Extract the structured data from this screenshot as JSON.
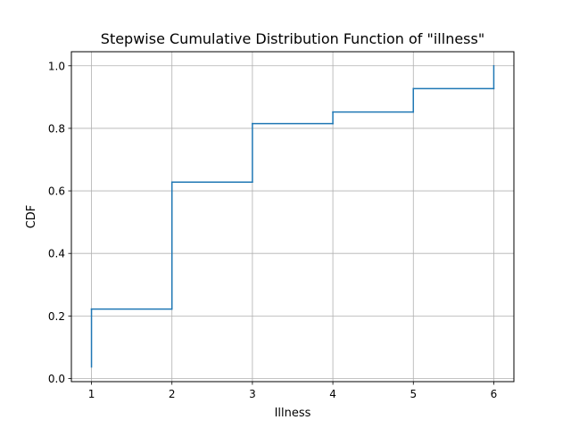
{
  "chart_data": {
    "type": "line",
    "step": "post",
    "title": "Stepwise Cumulative Distribution Function of \"illness\"",
    "xlabel": "Illness",
    "ylabel": "CDF",
    "xlim": [
      0.75,
      6.25
    ],
    "ylim": [
      -0.01,
      1.045
    ],
    "xticks": [
      1,
      2,
      3,
      4,
      5,
      6
    ],
    "xtick_labels": [
      "1",
      "2",
      "3",
      "4",
      "5",
      "6"
    ],
    "yticks": [
      0.0,
      0.2,
      0.4,
      0.6,
      0.8,
      1.0
    ],
    "ytick_labels": [
      "0.0",
      "0.2",
      "0.4",
      "0.6",
      "0.8",
      "1.0"
    ],
    "grid": true,
    "series": [
      {
        "color": "#1f77b4",
        "x": [
          1,
          1,
          2,
          2,
          3,
          3,
          4,
          4,
          5,
          5,
          6,
          6
        ],
        "y": [
          0.037,
          0.222,
          0.222,
          0.628,
          0.628,
          0.815,
          0.815,
          0.852,
          0.852,
          0.927,
          0.927,
          1.0
        ]
      }
    ]
  }
}
